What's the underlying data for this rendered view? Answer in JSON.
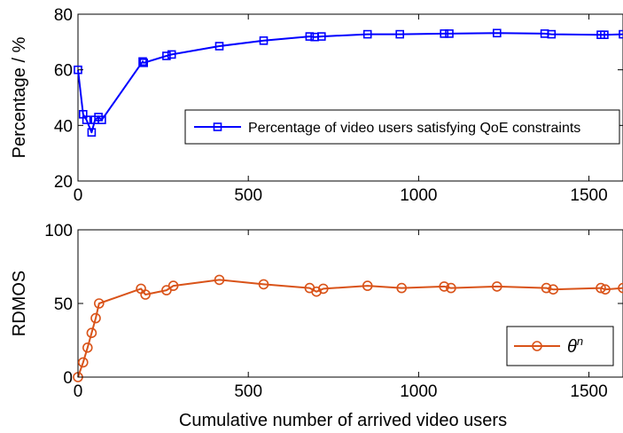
{
  "chart_data": [
    {
      "type": "line",
      "xlabel": "",
      "ylabel": "Percentage / %",
      "xlim": [
        0,
        1600
      ],
      "ylim": [
        20,
        80
      ],
      "xticks": [
        "0",
        "500",
        "1000",
        "1500"
      ],
      "yticks": [
        "20",
        "40",
        "60",
        "80"
      ],
      "grid": false,
      "legend_position": "middle-right",
      "marker": "square",
      "color": "#0000ff",
      "series": [
        {
          "name": "Percentage of video users satisfying QoE constraints",
          "points": [
            [
              0,
              60
            ],
            [
              15,
              44
            ],
            [
              25,
              42
            ],
            [
              40,
              37.5
            ],
            [
              50,
              42
            ],
            [
              60,
              43
            ],
            [
              70,
              42
            ],
            [
              190,
              63
            ],
            [
              193,
              62.5
            ],
            [
              260,
              65
            ],
            [
              275,
              65.5
            ],
            [
              415,
              68.5
            ],
            [
              545,
              70.5
            ],
            [
              680,
              72
            ],
            [
              695,
              71.8
            ],
            [
              715,
              72
            ],
            [
              850,
              72.8
            ],
            [
              945,
              72.8
            ],
            [
              1075,
              73
            ],
            [
              1090,
              73
            ],
            [
              1230,
              73.2
            ],
            [
              1370,
              73
            ],
            [
              1390,
              72.8
            ],
            [
              1535,
              72.6
            ],
            [
              1545,
              72.6
            ],
            [
              1600,
              72.8
            ]
          ]
        }
      ]
    },
    {
      "type": "line",
      "xlabel": "Cumulative number of arrived video users",
      "ylabel": "RDMOS",
      "xlim": [
        0,
        1600
      ],
      "ylim": [
        0,
        100
      ],
      "xticks": [
        "0",
        "500",
        "1000",
        "1500"
      ],
      "yticks": [
        "0",
        "50",
        "100"
      ],
      "grid": false,
      "legend_position": "bottom-right",
      "marker": "circle",
      "color": "#d95319",
      "series": [
        {
          "name": "θⁿ",
          "points": [
            [
              0,
              0
            ],
            [
              15,
              10
            ],
            [
              28,
              20
            ],
            [
              40,
              30
            ],
            [
              52,
              40
            ],
            [
              62,
              50
            ],
            [
              185,
              60
            ],
            [
              198,
              56
            ],
            [
              260,
              59
            ],
            [
              280,
              62
            ],
            [
              415,
              66
            ],
            [
              545,
              63
            ],
            [
              680,
              60.5
            ],
            [
              700,
              58
            ],
            [
              720,
              60
            ],
            [
              850,
              62
            ],
            [
              950,
              60.5
            ],
            [
              1075,
              61.5
            ],
            [
              1095,
              60.5
            ],
            [
              1230,
              61.5
            ],
            [
              1375,
              60.5
            ],
            [
              1395,
              59.5
            ],
            [
              1535,
              60.5
            ],
            [
              1548,
              59.5
            ],
            [
              1600,
              60.5
            ]
          ]
        }
      ]
    }
  ]
}
